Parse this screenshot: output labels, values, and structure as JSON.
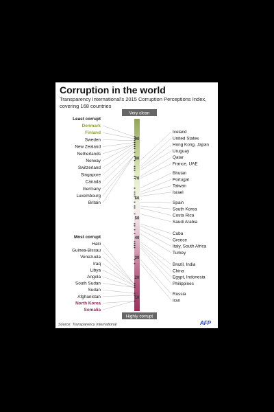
{
  "title": "Corruption in the world",
  "subtitle": "Transparency International's 2015 Corruption Perceptions Index, covering 168 countries",
  "source": "Source: Transparency International",
  "logo": "AFP",
  "colors": {
    "top_green": "#90a55a",
    "light_green": "#e4ecc6",
    "light_pink": "#ecd3dc",
    "dark_magenta": "#9c2f5d",
    "cleanest_text": "#8b9d43",
    "most_corrupt_text": "#8d2d58",
    "label_bg": "#666666"
  },
  "chart_data": {
    "type": "scale",
    "top_label": "Very clean",
    "bottom_label": "Highly corrupt",
    "ticks": [
      90,
      80,
      70,
      60,
      50,
      40,
      30,
      20,
      10
    ],
    "ylim": [
      3,
      100
    ],
    "left_header_top": "Least corrupt",
    "left_header_bottom": "Most corrupt",
    "left_top": [
      {
        "name": "Denmark",
        "score": 91,
        "highlight": "clean"
      },
      {
        "name": "Finland",
        "score": 90,
        "highlight": "clean"
      },
      {
        "name": "Sweden",
        "score": 89
      },
      {
        "name": "New Zealand",
        "score": 88
      },
      {
        "name": "Netherlands",
        "score": 87
      },
      {
        "name": "Norway",
        "score": 87
      },
      {
        "name": "Switzerland",
        "score": 86
      },
      {
        "name": "Singapore",
        "score": 85
      },
      {
        "name": "Canada",
        "score": 83
      },
      {
        "name": "Germany",
        "score": 81
      },
      {
        "name": "Luxembourg",
        "score": 81
      },
      {
        "name": "Britain",
        "score": 81
      }
    ],
    "left_bottom": [
      {
        "name": "Haiti",
        "score": 17
      },
      {
        "name": "Guinea-Bissau",
        "score": 17
      },
      {
        "name": "Venezuela",
        "score": 17
      },
      {
        "name": "Iraq",
        "score": 16
      },
      {
        "name": "Libya",
        "score": 16
      },
      {
        "name": "Angola",
        "score": 15
      },
      {
        "name": "South Sudan",
        "score": 15
      },
      {
        "name": "Sudan",
        "score": 12
      },
      {
        "name": "Afghanistan",
        "score": 11
      },
      {
        "name": "North Korea",
        "score": 8,
        "highlight": "corrupt"
      },
      {
        "name": "Somalia",
        "score": 8,
        "highlight": "corrupt"
      }
    ],
    "right": [
      {
        "name": "Iceland",
        "score": 79
      },
      {
        "name": "United States",
        "score": 76
      },
      {
        "name": "Hong Kong, Japan",
        "score": 75
      },
      {
        "name": "Uruguay",
        "score": 74
      },
      {
        "name": "Qatar",
        "score": 71
      },
      {
        "name": "France, UAE",
        "score": 70
      },
      {
        "name": "Bhutan",
        "score": 65
      },
      {
        "name": "Portugal",
        "score": 63
      },
      {
        "name": "Taiwan",
        "score": 62
      },
      {
        "name": "Israel",
        "score": 61
      },
      {
        "name": "Spain",
        "score": 58
      },
      {
        "name": "South Korea",
        "score": 56
      },
      {
        "name": "Costa Rica",
        "score": 55
      },
      {
        "name": "Saudi Arabia",
        "score": 52
      },
      {
        "name": "Cuba",
        "score": 47
      },
      {
        "name": "Greece",
        "score": 46
      },
      {
        "name": "Italy, South Africa",
        "score": 44
      },
      {
        "name": "Turkey",
        "score": 42
      },
      {
        "name": "Brazil, India",
        "score": 38
      },
      {
        "name": "China",
        "score": 37
      },
      {
        "name": "Egypt, Indonesia",
        "score": 36
      },
      {
        "name": "Philippines",
        "score": 35
      },
      {
        "name": "Russia",
        "score": 29
      },
      {
        "name": "Iran",
        "score": 27
      }
    ]
  }
}
